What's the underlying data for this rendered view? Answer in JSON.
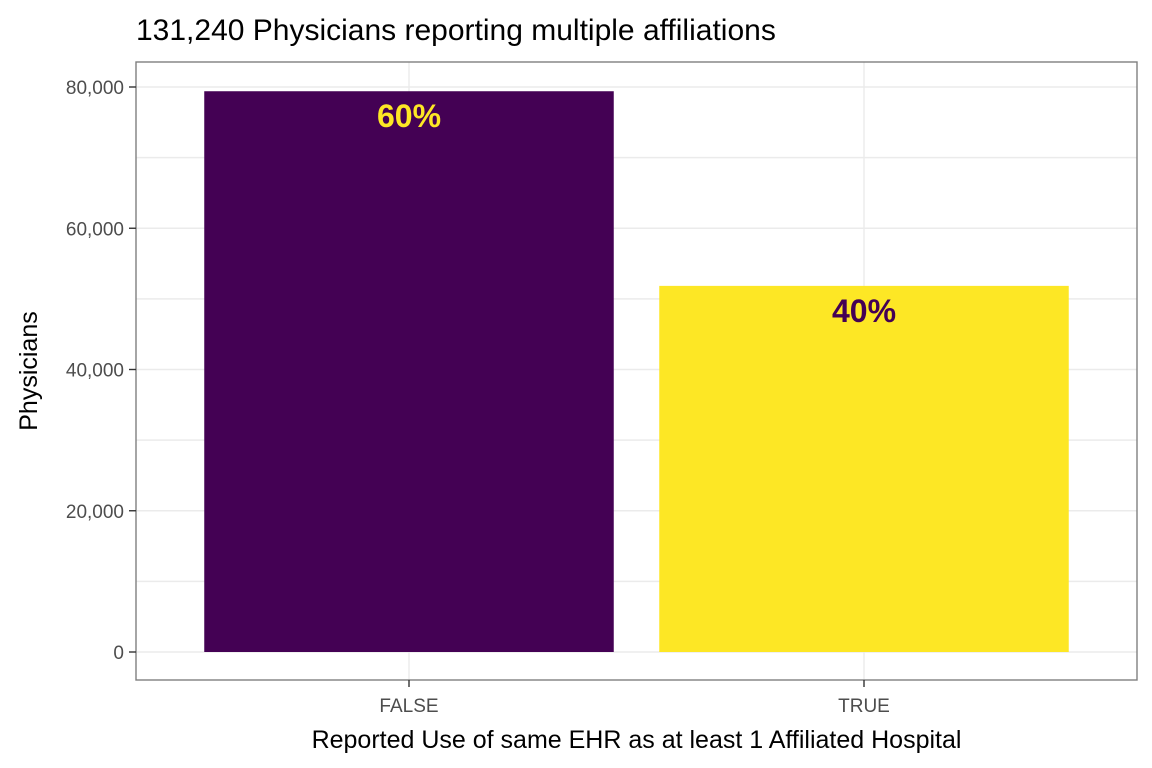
{
  "chart_data": {
    "type": "bar",
    "title": "131,240 Physicians reporting multiple affiliations",
    "xlabel": "Reported Use of same EHR as at least 1 Affiliated Hospital",
    "ylabel": "Physicians",
    "categories": [
      "FALSE",
      "TRUE"
    ],
    "values": [
      79400,
      51840
    ],
    "labels": [
      "60%",
      "40%"
    ],
    "bar_colors": [
      "#440154",
      "#FDE725"
    ],
    "label_colors": [
      "#FDE725",
      "#440154"
    ],
    "ylim": [
      0,
      80000
    ],
    "yticks": [
      0,
      20000,
      40000,
      60000,
      80000
    ],
    "ytick_labels": [
      "0",
      "20,000",
      "40,000",
      "60,000",
      "80,000"
    ],
    "grid": true,
    "legend": "none"
  }
}
